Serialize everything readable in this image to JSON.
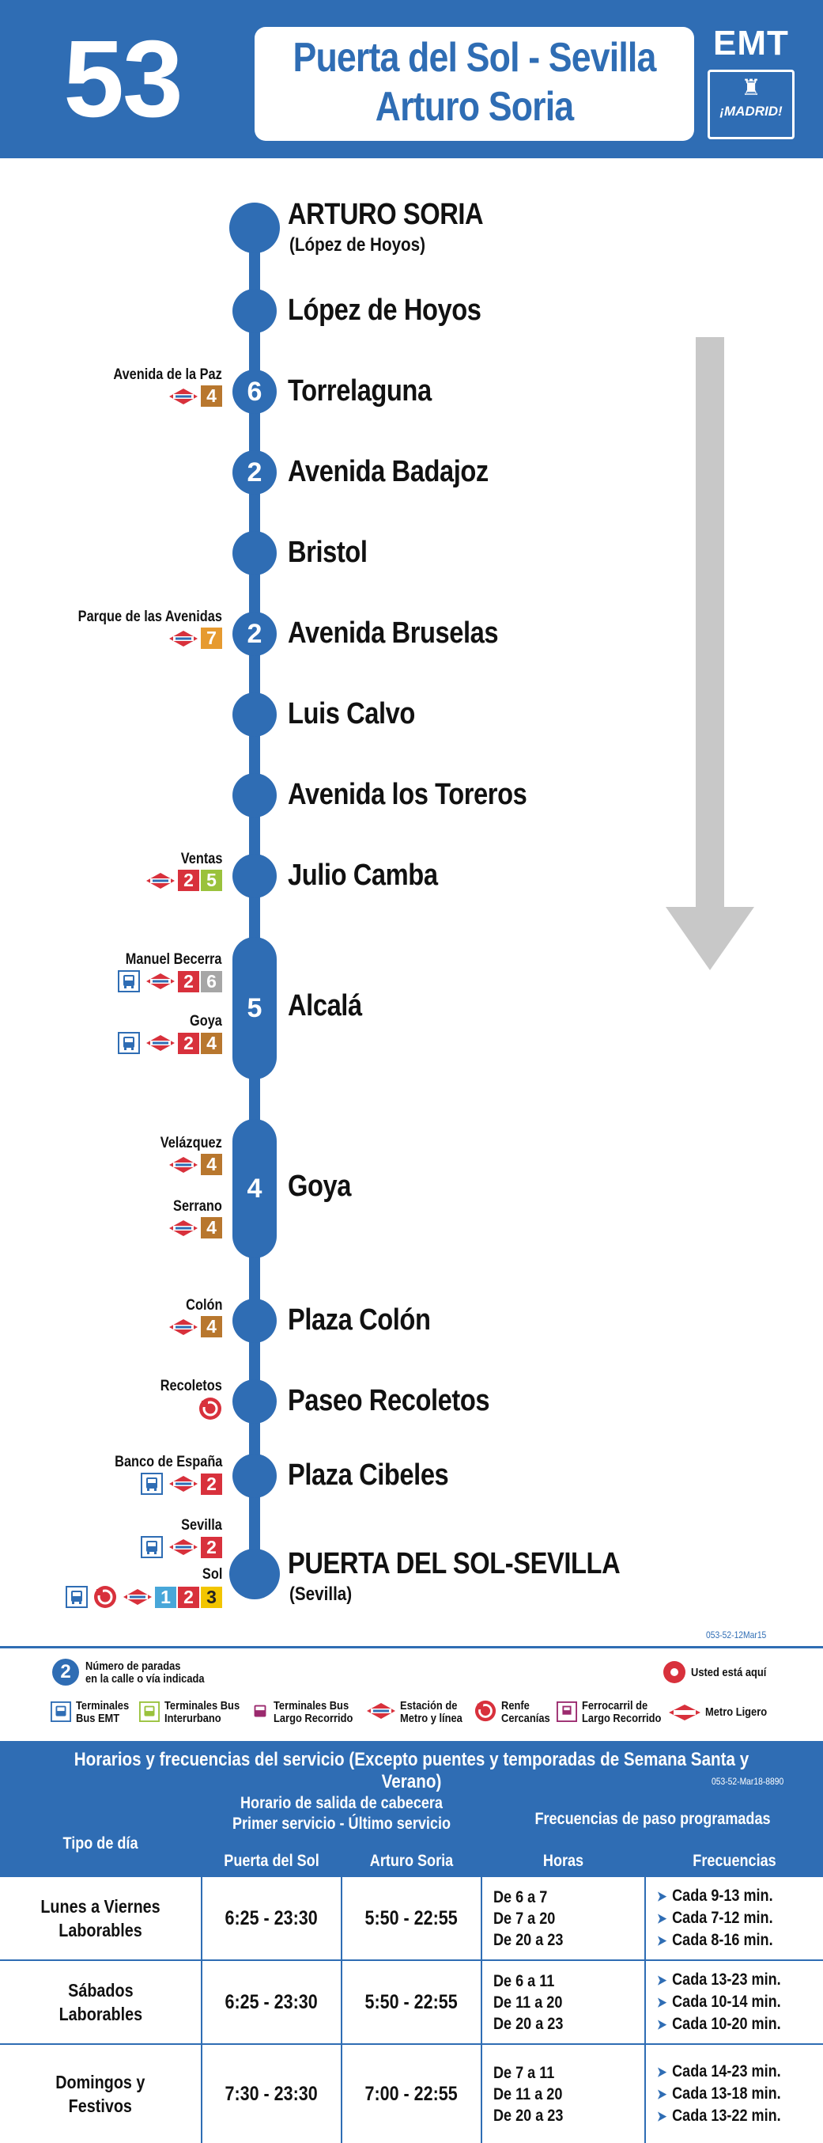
{
  "header": {
    "line_number": "53",
    "route_line1": "Puerta del Sol - Sevilla",
    "route_line2": "Arturo Soria",
    "brand": "EMT",
    "city_logo_text": "¡MADRID!"
  },
  "stops": [
    {
      "name": "ARTURO SORIA",
      "sub": "(López de Hoyos)"
    },
    {
      "name": "López de Hoyos"
    },
    {
      "name": "Torrelaguna",
      "count": "6",
      "connection": "Avenida de la Paz",
      "lines": [
        "4"
      ]
    },
    {
      "name": "Avenida Badajoz",
      "count": "2"
    },
    {
      "name": "Bristol"
    },
    {
      "name": "Avenida Bruselas",
      "count": "2",
      "connection": "Parque de las Avenidas",
      "lines": [
        "7"
      ]
    },
    {
      "name": "Luis Calvo"
    },
    {
      "name": "Avenida los Toreros"
    },
    {
      "name": "Julio Camba",
      "connection": "Ventas",
      "lines": [
        "2",
        "5"
      ]
    },
    {
      "name": "Alcalá",
      "count": "5",
      "connections": [
        {
          "name": "Manuel Becerra",
          "lines": [
            "2",
            "6"
          ]
        },
        {
          "name": "Goya",
          "lines": [
            "2",
            "4"
          ]
        }
      ]
    },
    {
      "name": "Goya",
      "count": "4",
      "connections": [
        {
          "name": "Velázquez",
          "lines": [
            "4"
          ]
        },
        {
          "name": "Serrano",
          "lines": [
            "4"
          ]
        }
      ]
    },
    {
      "name": "Plaza Colón",
      "connection": "Colón",
      "lines": [
        "4"
      ]
    },
    {
      "name": "Paseo Recoletos",
      "connection": "Recoletos"
    },
    {
      "name": "Plaza Cibeles",
      "connection": "Banco de España",
      "lines": [
        "2"
      ]
    },
    {
      "name": "PUERTA DEL SOL-SEVILLA",
      "sub": "(Sevilla)",
      "connections": [
        {
          "name": "Sevilla",
          "lines": [
            "2"
          ]
        },
        {
          "name": "Sol",
          "lines": [
            "1",
            "2",
            "3"
          ]
        }
      ]
    }
  ],
  "codes": {
    "map": "053-52-12Mar15",
    "table": "053-52-Mar18-8890"
  },
  "legend": {
    "stops_count": "2",
    "stops_count_text_1": "Número de paradas",
    "stops_count_text_2": "en la calle o vía indicada",
    "here": "Usted está aquí",
    "emt_1": "Terminales",
    "emt_2": "Bus EMT",
    "inter_1": "Terminales Bus",
    "inter_2": "Interurbano",
    "long_1": "Terminales Bus",
    "long_2": "Largo Recorrido",
    "metro_1": "Estación de",
    "metro_2": "Metro y línea",
    "renfe_1": "Renfe",
    "renfe_2": "Cercanías",
    "rail_1": "Ferrocarril de",
    "rail_2": "Largo Recorrido",
    "ml": "Metro Ligero"
  },
  "timetable": {
    "title": "Horarios y frecuencias del servicio (Excepto puentes y temporadas de Semana Santa y Verano)",
    "col_day": "Tipo de día",
    "col_schedule_1": "Horario de salida de cabecera",
    "col_schedule_2": "Primer servicio - Último servicio",
    "col_freq": "Frecuencias de paso programadas",
    "sub_sol": "Puerta del Sol",
    "sub_arturo": "Arturo Soria",
    "sub_horas": "Horas",
    "sub_freq": "Frecuencias",
    "rows": [
      {
        "day_1": "Lunes a Viernes",
        "day_2": "Laborables",
        "sol": "6:25 - 23:30",
        "arturo": "5:50 - 22:55",
        "horas": [
          "De 6 a 7",
          "De 7 a 20",
          "De 20 a 23"
        ],
        "freqs": [
          "Cada 9-13 min.",
          "Cada 7-12 min.",
          "Cada 8-16 min."
        ]
      },
      {
        "day_1": "Sábados",
        "day_2": "Laborables",
        "sol": "6:25 - 23:30",
        "arturo": "5:50 - 22:55",
        "horas": [
          "De 6 a 11",
          "De 11 a 20",
          "De 20 a 23"
        ],
        "freqs": [
          "Cada 13-23 min.",
          "Cada 10-14 min.",
          "Cada 10-20 min."
        ]
      },
      {
        "day_1": "Domingos y",
        "day_2": "Festivos",
        "sol": "7:30 - 23:30",
        "arturo": "7:00 - 22:55",
        "horas": [
          "De 7 a 11",
          "De 11 a 20",
          "De 20 a 23"
        ],
        "freqs": [
          "Cada 14-23 min.",
          "Cada 13-18 min.",
          "Cada 13-22 min."
        ]
      }
    ]
  },
  "colors": {
    "brand_blue": "#2f6db4",
    "arrow_grey": "#c8c8c8",
    "metro_red": "#d8313c"
  }
}
